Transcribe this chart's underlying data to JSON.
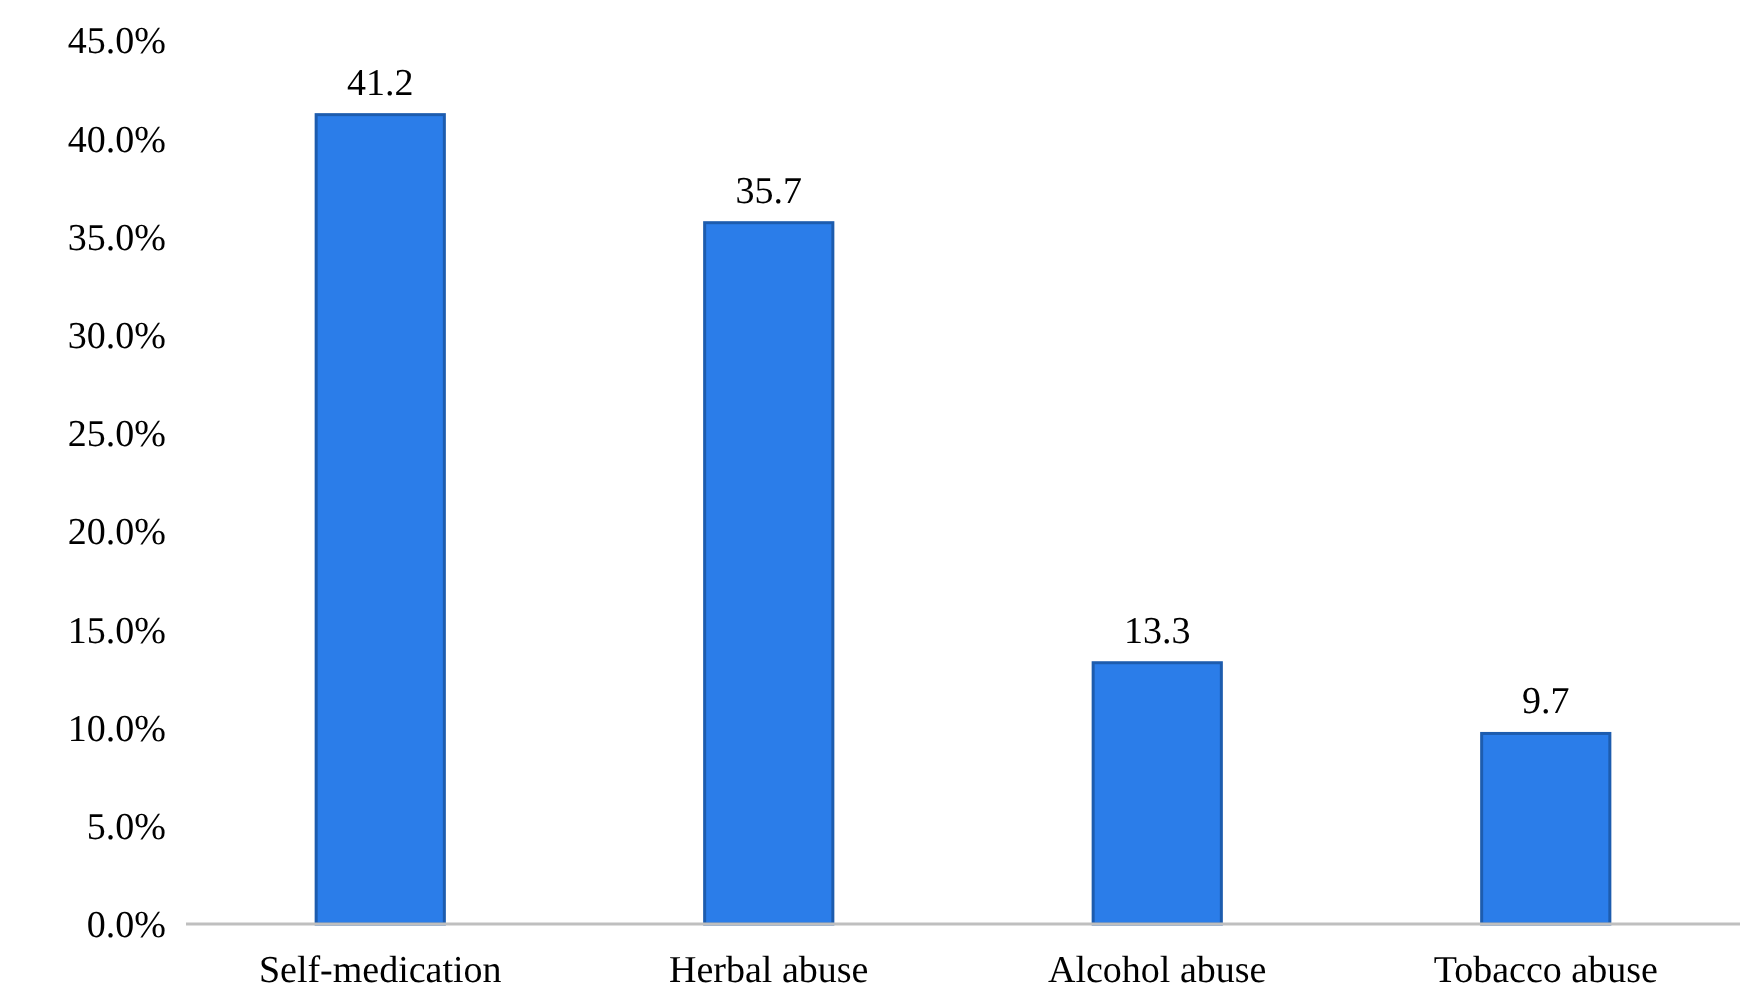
{
  "chart_data": {
    "type": "bar",
    "categories": [
      "Self-medication",
      "Herbal abuse",
      "Alcohol abuse",
      "Tobacco abuse"
    ],
    "values": [
      41.2,
      35.7,
      13.3,
      9.7
    ],
    "color": "#2b7de9",
    "data_labels": true,
    "ylim": [
      0,
      45
    ],
    "yticks": [
      {
        "value": 0,
        "label": "0.0%"
      },
      {
        "value": 5,
        "label": "5.0%"
      },
      {
        "value": 10,
        "label": "10.0%"
      },
      {
        "value": 15,
        "label": "15.0%"
      },
      {
        "value": 20,
        "label": "20.0%"
      },
      {
        "value": 25,
        "label": "25.0%"
      },
      {
        "value": 30,
        "label": "30.0%"
      },
      {
        "value": 35,
        "label": "35.0%"
      },
      {
        "value": 40,
        "label": "40.0%"
      },
      {
        "value": 45,
        "label": "45.0%"
      }
    ],
    "grid": false
  }
}
